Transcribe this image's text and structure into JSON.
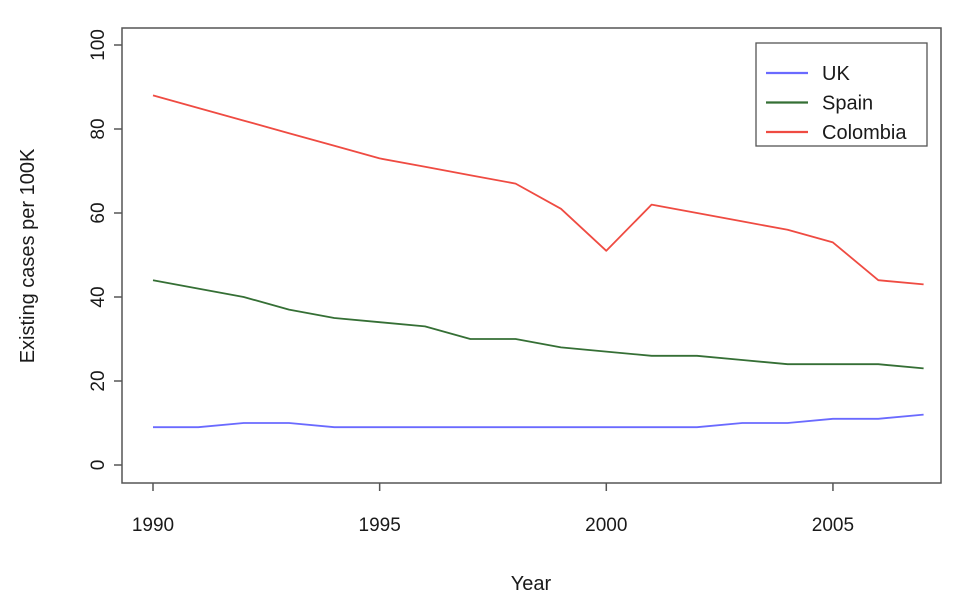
{
  "chart_data": {
    "type": "line",
    "title": "",
    "xlabel": "Year",
    "ylabel": "Existing cases per 100K",
    "x": [
      1990,
      1991,
      1992,
      1993,
      1994,
      1995,
      1996,
      1997,
      1998,
      1999,
      2000,
      2001,
      2002,
      2003,
      2004,
      2005,
      2006,
      2007
    ],
    "series": [
      {
        "name": "UK",
        "color": "#6A6AFF",
        "values": [
          9,
          9,
          10,
          10,
          9,
          9,
          9,
          9,
          9,
          9,
          9,
          9,
          9,
          10,
          10,
          11,
          11,
          12
        ]
      },
      {
        "name": "Spain",
        "color": "#356F35",
        "values": [
          44,
          42,
          40,
          37,
          35,
          34,
          33,
          30,
          30,
          28,
          27,
          26,
          26,
          25,
          24,
          24,
          24,
          23
        ]
      },
      {
        "name": "Colombia",
        "color": "#EF4B42",
        "values": [
          88,
          85,
          82,
          79,
          76,
          73,
          71,
          69,
          67,
          61,
          51,
          62,
          60,
          58,
          56,
          53,
          44,
          43
        ]
      }
    ],
    "xticks": [
      1990,
      1995,
      2000,
      2005
    ],
    "yticks": [
      0,
      20,
      40,
      60,
      80,
      100
    ],
    "xlim": [
      1989.3,
      2007.7
    ],
    "ylim": [
      0,
      100
    ],
    "grid": false,
    "legend_position": "top-right",
    "axis_color": "#555555",
    "text_color": "#1a1a1a"
  }
}
